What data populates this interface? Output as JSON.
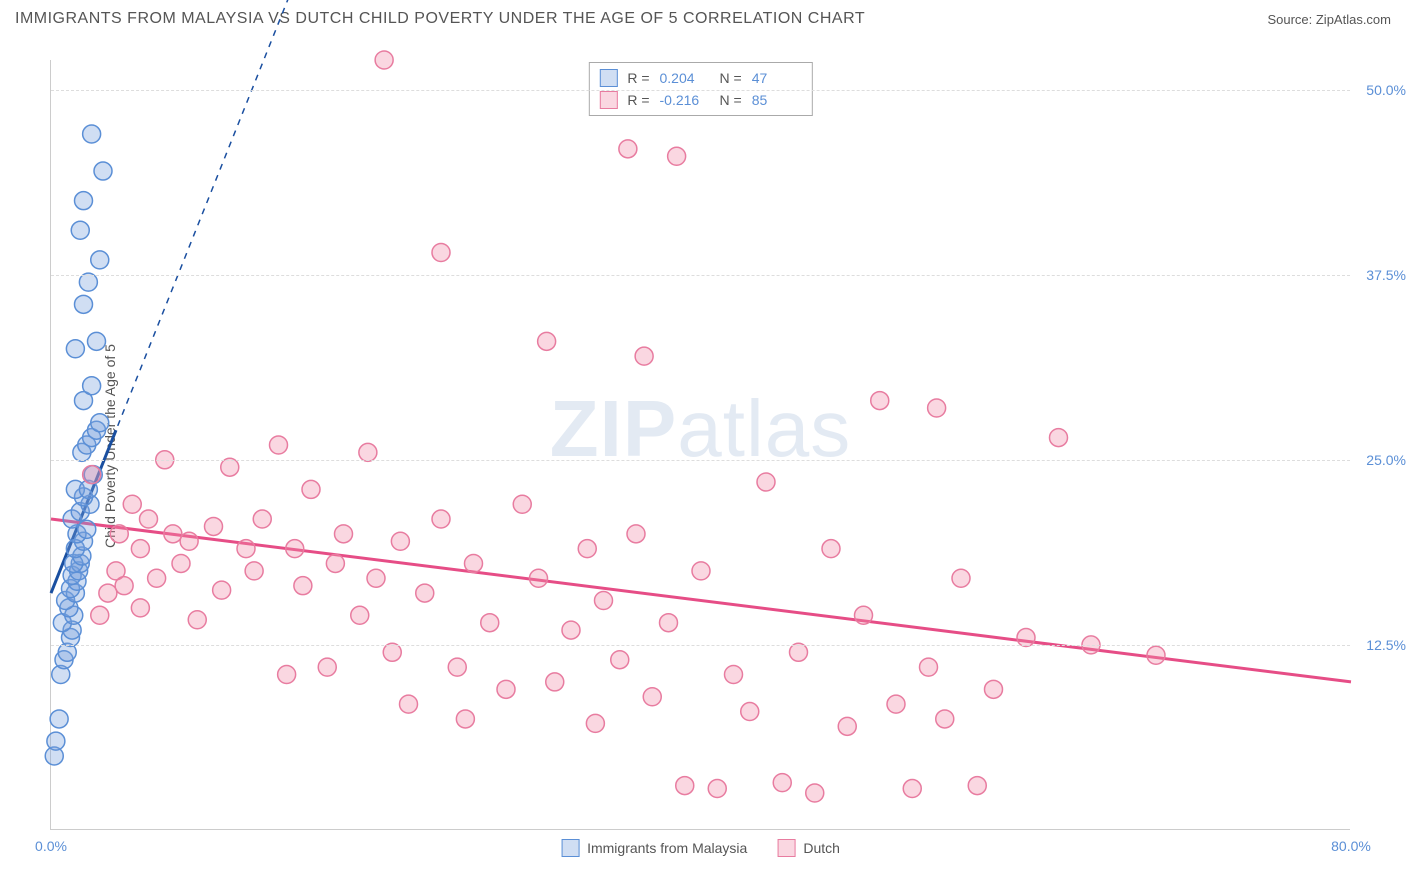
{
  "header": {
    "title": "IMMIGRANTS FROM MALAYSIA VS DUTCH CHILD POVERTY UNDER THE AGE OF 5 CORRELATION CHART",
    "source_prefix": "Source: ",
    "source_name": "ZipAtlas.com"
  },
  "y_axis": {
    "label": "Child Poverty Under the Age of 5"
  },
  "watermark": {
    "part1": "ZIP",
    "part2": "atlas"
  },
  "chart": {
    "type": "scatter",
    "xlim": [
      0,
      80
    ],
    "ylim": [
      0,
      52
    ],
    "x_ticks": [
      {
        "v": 0,
        "label": "0.0%"
      },
      {
        "v": 80,
        "label": "80.0%"
      }
    ],
    "y_ticks": [
      {
        "v": 12.5,
        "label": "12.5%"
      },
      {
        "v": 25.0,
        "label": "25.0%"
      },
      {
        "v": 37.5,
        "label": "37.5%"
      },
      {
        "v": 50.0,
        "label": "50.0%"
      }
    ],
    "grid_color": "#dddddd",
    "background_color": "#ffffff",
    "marker_radius": 9,
    "marker_stroke_width": 1.5,
    "series": [
      {
        "key": "malaysia",
        "label": "Immigrants from Malaysia",
        "fill": "rgba(120,160,220,0.35)",
        "stroke": "#5b8fd6",
        "R": "0.204",
        "N": "47",
        "trend": {
          "x1": 0,
          "y1": 16,
          "x2": 4,
          "y2": 27,
          "color": "#1a4fa0",
          "width": 3,
          "dashx1": 0,
          "dashy1": 16,
          "dashx2": 24,
          "dashy2": 82
        },
        "points": [
          [
            0.2,
            5.0
          ],
          [
            0.3,
            6.0
          ],
          [
            0.5,
            7.5
          ],
          [
            0.6,
            10.5
          ],
          [
            0.8,
            11.5
          ],
          [
            1.0,
            12.0
          ],
          [
            1.2,
            13.0
          ],
          [
            1.3,
            13.5
          ],
          [
            0.7,
            14.0
          ],
          [
            1.4,
            14.5
          ],
          [
            1.1,
            15.0
          ],
          [
            0.9,
            15.5
          ],
          [
            1.5,
            16.0
          ],
          [
            1.2,
            16.3
          ],
          [
            1.6,
            16.8
          ],
          [
            1.3,
            17.2
          ],
          [
            1.7,
            17.5
          ],
          [
            1.8,
            18.0
          ],
          [
            1.4,
            18.0
          ],
          [
            1.9,
            18.5
          ],
          [
            1.5,
            19.0
          ],
          [
            2.0,
            19.5
          ],
          [
            1.6,
            20.0
          ],
          [
            2.2,
            20.3
          ],
          [
            1.3,
            21.0
          ],
          [
            1.8,
            21.5
          ],
          [
            2.4,
            22.0
          ],
          [
            2.0,
            22.5
          ],
          [
            1.5,
            23.0
          ],
          [
            2.3,
            23.0
          ],
          [
            2.6,
            24.0
          ],
          [
            1.9,
            25.5
          ],
          [
            2.2,
            26.0
          ],
          [
            2.5,
            26.5
          ],
          [
            2.8,
            27.0
          ],
          [
            3.0,
            27.5
          ],
          [
            2.0,
            29.0
          ],
          [
            2.5,
            30.0
          ],
          [
            1.5,
            32.5
          ],
          [
            2.8,
            33.0
          ],
          [
            2.0,
            35.5
          ],
          [
            2.3,
            37.0
          ],
          [
            3.0,
            38.5
          ],
          [
            1.8,
            40.5
          ],
          [
            2.0,
            42.5
          ],
          [
            3.2,
            44.5
          ],
          [
            2.5,
            47.0
          ]
        ]
      },
      {
        "key": "dutch",
        "label": "Dutch",
        "fill": "rgba(240,140,170,0.35)",
        "stroke": "#e87ca0",
        "R": "-0.216",
        "N": "85",
        "trend": {
          "x1": 0,
          "y1": 21,
          "x2": 80,
          "y2": 10,
          "color": "#e64d86",
          "width": 3
        },
        "points": [
          [
            2.5,
            24.0
          ],
          [
            3.0,
            14.5
          ],
          [
            3.5,
            16.0
          ],
          [
            4.0,
            17.5
          ],
          [
            4.2,
            20.0
          ],
          [
            4.5,
            16.5
          ],
          [
            5.0,
            22.0
          ],
          [
            5.5,
            15.0
          ],
          [
            5.5,
            19.0
          ],
          [
            6.0,
            21.0
          ],
          [
            6.5,
            17.0
          ],
          [
            7.0,
            25.0
          ],
          [
            7.5,
            20.0
          ],
          [
            8.0,
            18.0
          ],
          [
            8.5,
            19.5
          ],
          [
            9.0,
            14.2
          ],
          [
            10.0,
            20.5
          ],
          [
            10.5,
            16.2
          ],
          [
            11.0,
            24.5
          ],
          [
            12.0,
            19.0
          ],
          [
            12.5,
            17.5
          ],
          [
            13.0,
            21.0
          ],
          [
            14.0,
            26.0
          ],
          [
            14.5,
            10.5
          ],
          [
            15.0,
            19.0
          ],
          [
            15.5,
            16.5
          ],
          [
            16.0,
            23.0
          ],
          [
            17.0,
            11.0
          ],
          [
            17.5,
            18.0
          ],
          [
            18.0,
            20.0
          ],
          [
            19.0,
            14.5
          ],
          [
            19.5,
            25.5
          ],
          [
            20.0,
            17.0
          ],
          [
            21.0,
            12.0
          ],
          [
            21.5,
            19.5
          ],
          [
            22.0,
            8.5
          ],
          [
            23.0,
            16.0
          ],
          [
            24.0,
            21.0
          ],
          [
            24.0,
            39.0
          ],
          [
            25.0,
            11.0
          ],
          [
            25.5,
            7.5
          ],
          [
            26.0,
            18.0
          ],
          [
            27.0,
            14.0
          ],
          [
            28.0,
            9.5
          ],
          [
            29.0,
            22.0
          ],
          [
            30.0,
            17.0
          ],
          [
            30.5,
            33.0
          ],
          [
            31.0,
            10.0
          ],
          [
            32.0,
            13.5
          ],
          [
            33.0,
            19.0
          ],
          [
            33.5,
            7.2
          ],
          [
            34.0,
            15.5
          ],
          [
            35.0,
            11.5
          ],
          [
            35.5,
            46.0
          ],
          [
            36.0,
            20.0
          ],
          [
            36.5,
            32.0
          ],
          [
            37.0,
            9.0
          ],
          [
            38.0,
            14.0
          ],
          [
            38.5,
            45.5
          ],
          [
            39.0,
            3.0
          ],
          [
            20.5,
            52.0
          ],
          [
            40.0,
            17.5
          ],
          [
            41.0,
            2.8
          ],
          [
            42.0,
            10.5
          ],
          [
            43.0,
            8.0
          ],
          [
            44.0,
            23.5
          ],
          [
            45.0,
            3.2
          ],
          [
            46.0,
            12.0
          ],
          [
            47.0,
            2.5
          ],
          [
            48.0,
            19.0
          ],
          [
            49.0,
            7.0
          ],
          [
            50.0,
            14.5
          ],
          [
            51.0,
            29.0
          ],
          [
            52.0,
            8.5
          ],
          [
            53.0,
            2.8
          ],
          [
            54.0,
            11.0
          ],
          [
            54.5,
            28.5
          ],
          [
            55.0,
            7.5
          ],
          [
            56.0,
            17.0
          ],
          [
            57.0,
            3.0
          ],
          [
            58.0,
            9.5
          ],
          [
            60.0,
            13.0
          ],
          [
            62.0,
            26.5
          ],
          [
            64.0,
            12.5
          ],
          [
            68.0,
            11.8
          ]
        ]
      }
    ]
  },
  "top_legend": {
    "r_label": "R =",
    "n_label": "N ="
  },
  "bottom_legend": {}
}
